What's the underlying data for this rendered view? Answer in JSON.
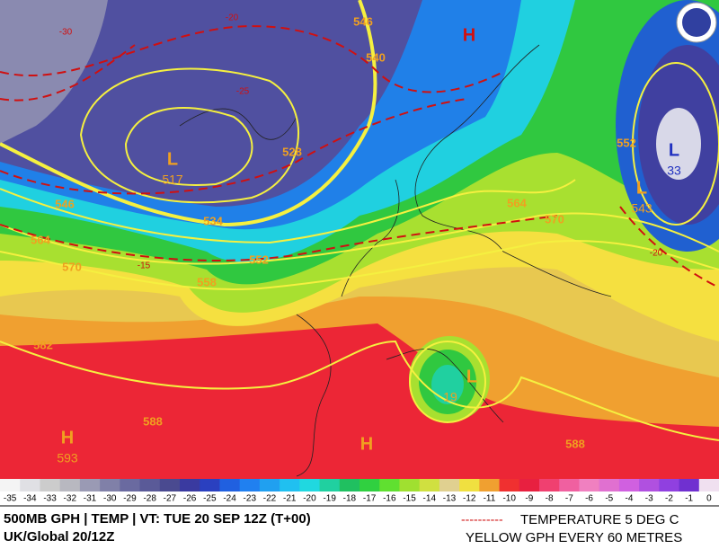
{
  "map": {
    "gph_labels": [
      546,
      540,
      528,
      534,
      552,
      558,
      546,
      564,
      570,
      564,
      570,
      552,
      588,
      582,
      588
    ],
    "temp_labels": [
      -20,
      -25,
      -30,
      -15,
      -20
    ],
    "centers": [
      {
        "symbol": "L",
        "value": 517
      },
      {
        "symbol": "L",
        "value": 33
      },
      {
        "symbol": "L",
        "value": 19
      },
      {
        "symbol": "L",
        "value": 543
      },
      {
        "symbol": "H",
        "value": 593
      },
      {
        "symbol": "H"
      },
      {
        "symbol": "H"
      }
    ]
  },
  "colorbar": {
    "labels": [
      -35,
      -34,
      -33,
      -32,
      -31,
      -30,
      -29,
      -28,
      -27,
      -26,
      -25,
      -24,
      -23,
      -22,
      -21,
      -20,
      -19,
      -18,
      -17,
      -16,
      -15,
      -14,
      -13,
      -12,
      -11,
      -10,
      -9,
      -8,
      -7,
      -6,
      -5,
      -4,
      -3,
      -2,
      -1,
      0
    ],
    "colors": [
      "#f4f4f4",
      "#e0e0e4",
      "#cccccc",
      "#b8b8c0",
      "#9a9ab4",
      "#8080a8",
      "#6a6aa0",
      "#5a5a98",
      "#4a4a90",
      "#3a3aa0",
      "#2a40c0",
      "#2060e0",
      "#2080f0",
      "#20a0f0",
      "#20c0f0",
      "#20d8e0",
      "#20d0a0",
      "#20c060",
      "#30d040",
      "#60e030",
      "#a0e030",
      "#d0e040",
      "#e0d090",
      "#f0e040",
      "#f0a030",
      "#f03030",
      "#e82040",
      "#f04070",
      "#f060a0",
      "#f080c0",
      "#e070d0",
      "#d060e0",
      "#b050e0",
      "#9040e0",
      "#7030d0",
      "#f0e0f0"
    ]
  },
  "footer": {
    "title": "500MB GPH | TEMP |  VT: TUE 20 SEP 12Z (T+00)",
    "model": "UK/Global 20/12Z",
    "temp_dash": "----------",
    "temp_legend": "TEMPERATURE 5 DEG C",
    "gph_legend": "YELLOW GPH EVERY 60 METRES"
  }
}
